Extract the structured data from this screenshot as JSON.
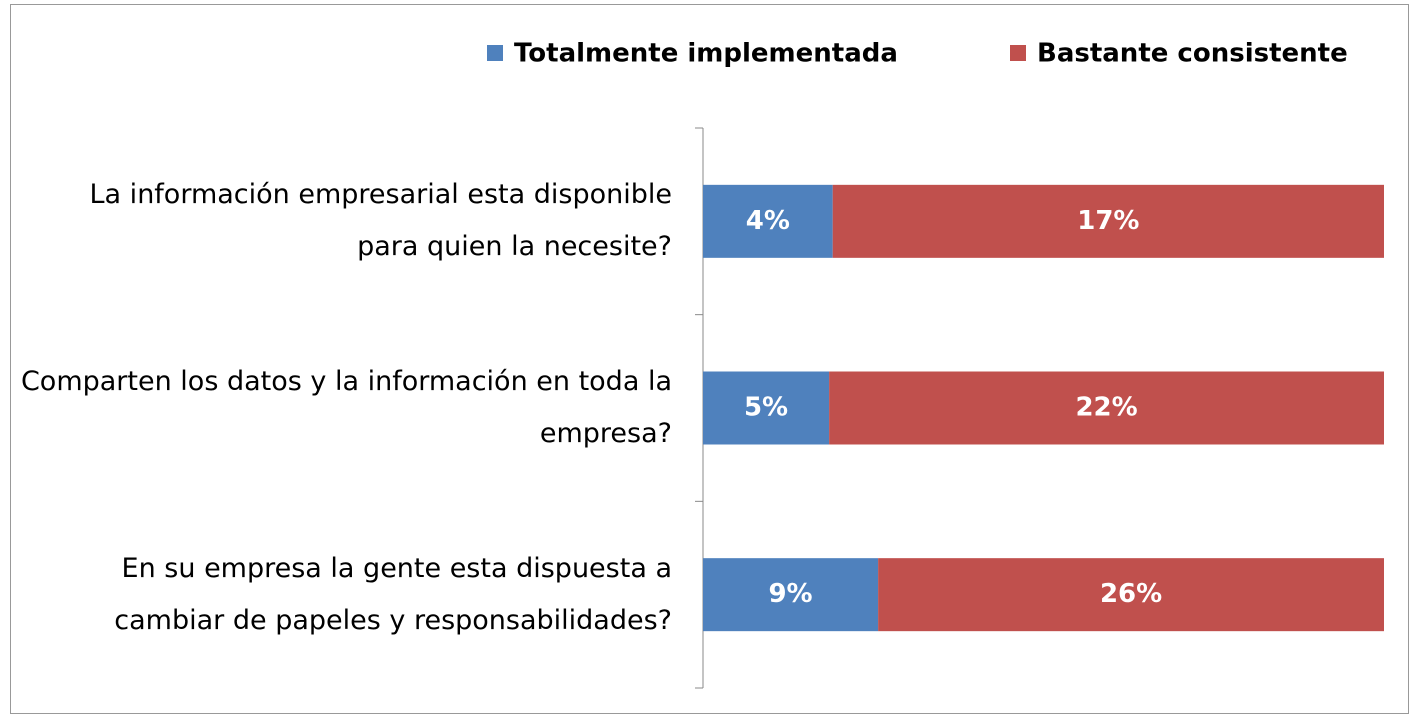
{
  "chart_data": {
    "type": "bar100",
    "orientation": "horizontal",
    "categories": [
      "La información empresarial esta disponible para quien la necesite?",
      "Comparten los datos y la información en toda la empresa?",
      "En su empresa la gente esta dispuesta a cambiar de papeles y responsabilidades?"
    ],
    "series": [
      {
        "name": "Totalmente implementada",
        "color": "#4f81bd",
        "values": [
          4,
          5,
          9
        ],
        "value_labels": [
          "4%",
          "5%",
          "9%"
        ]
      },
      {
        "name": "Bastante consistente",
        "color": "#c0504d",
        "values": [
          17,
          22,
          26
        ],
        "value_labels": [
          "17%",
          "22%",
          "26%"
        ]
      }
    ],
    "legend": "top-right"
  }
}
